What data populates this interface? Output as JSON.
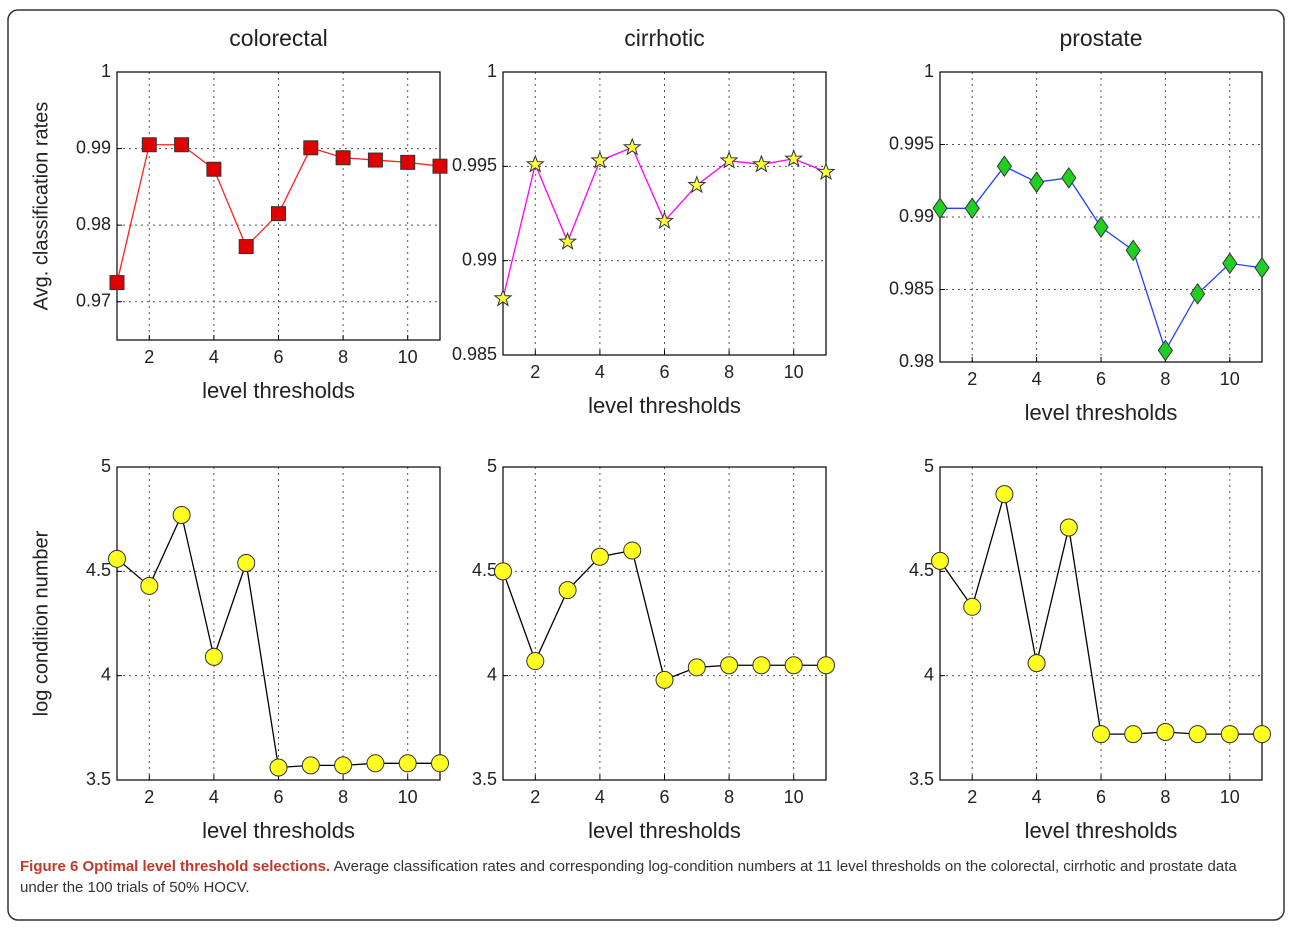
{
  "chart_data": [
    {
      "type": "line",
      "title": "colorectal",
      "xlabel": "level thresholds",
      "ylabel": "Avg. classification rates",
      "x": [
        1,
        2,
        3,
        4,
        5,
        6,
        7,
        8,
        9,
        10,
        11
      ],
      "xlim": [
        1,
        11
      ],
      "xticks": [
        2,
        4,
        6,
        8,
        10
      ],
      "ylim": [
        0.965,
        1
      ],
      "yticks": [
        0.97,
        0.98,
        0.99,
        1
      ],
      "grid": true,
      "series": [
        {
          "color": "#ff2020",
          "marker": "square",
          "marker_color": "#e00000",
          "values": [
            0.9725,
            0.9905,
            0.9905,
            0.9873,
            0.9772,
            0.9815,
            0.9901,
            0.9888,
            0.9885,
            0.9882,
            0.9877
          ]
        }
      ]
    },
    {
      "type": "line",
      "title": "cirrhotic",
      "xlabel": "level thresholds",
      "x": [
        1,
        2,
        3,
        4,
        5,
        6,
        7,
        8,
        9,
        10,
        11
      ],
      "xlim": [
        1,
        11
      ],
      "xticks": [
        2,
        4,
        6,
        8,
        10
      ],
      "ylim": [
        0.985,
        1
      ],
      "yticks": [
        0.985,
        0.99,
        0.995,
        1
      ],
      "grid": true,
      "series": [
        {
          "color": "#ff00ff",
          "marker": "star",
          "marker_color": "#ffff40",
          "values": [
            0.988,
            0.9951,
            0.991,
            0.9953,
            0.996,
            0.9921,
            0.994,
            0.9953,
            0.9951,
            0.9954,
            0.9947
          ]
        }
      ]
    },
    {
      "type": "line",
      "title": "prostate",
      "xlabel": "level thresholds",
      "x": [
        1,
        2,
        3,
        4,
        5,
        6,
        7,
        8,
        9,
        10,
        11
      ],
      "xlim": [
        1,
        11
      ],
      "xticks": [
        2,
        4,
        6,
        8,
        10
      ],
      "ylim": [
        0.98,
        1
      ],
      "yticks": [
        0.98,
        0.985,
        0.99,
        0.995,
        1
      ],
      "grid": true,
      "series": [
        {
          "color": "#2040ff",
          "marker": "diamond",
          "marker_color": "#20d020",
          "values": [
            0.9906,
            0.9906,
            0.9935,
            0.9924,
            0.9927,
            0.9893,
            0.9877,
            0.9808,
            0.9847,
            0.9868,
            0.9865
          ]
        }
      ]
    },
    {
      "type": "line",
      "xlabel": "level thresholds",
      "ylabel": "log condition number",
      "x": [
        1,
        2,
        3,
        4,
        5,
        6,
        7,
        8,
        9,
        10,
        11
      ],
      "xlim": [
        1,
        11
      ],
      "xticks": [
        2,
        4,
        6,
        8,
        10
      ],
      "ylim": [
        3.5,
        5
      ],
      "yticks": [
        3.5,
        4,
        4.5,
        5
      ],
      "grid": true,
      "series": [
        {
          "color": "#000000",
          "marker": "circle",
          "marker_color": "#ffff20",
          "values": [
            4.56,
            4.43,
            4.77,
            4.09,
            4.54,
            3.56,
            3.57,
            3.57,
            3.58,
            3.58,
            3.58
          ]
        }
      ]
    },
    {
      "type": "line",
      "xlabel": "level thresholds",
      "x": [
        1,
        2,
        3,
        4,
        5,
        6,
        7,
        8,
        9,
        10,
        11
      ],
      "xlim": [
        1,
        11
      ],
      "xticks": [
        2,
        4,
        6,
        8,
        10
      ],
      "ylim": [
        3.5,
        5
      ],
      "yticks": [
        3.5,
        4,
        4.5,
        5
      ],
      "grid": true,
      "series": [
        {
          "color": "#000000",
          "marker": "circle",
          "marker_color": "#ffff20",
          "values": [
            4.5,
            4.07,
            4.41,
            4.57,
            4.6,
            3.98,
            4.04,
            4.05,
            4.05,
            4.05,
            4.05
          ]
        }
      ]
    },
    {
      "type": "line",
      "xlabel": "level thresholds",
      "x": [
        1,
        2,
        3,
        4,
        5,
        6,
        7,
        8,
        9,
        10,
        11
      ],
      "xlim": [
        1,
        11
      ],
      "xticks": [
        2,
        4,
        6,
        8,
        10
      ],
      "ylim": [
        3.5,
        5
      ],
      "yticks": [
        3.5,
        4,
        4.5,
        5
      ],
      "grid": true,
      "series": [
        {
          "color": "#000000",
          "marker": "circle",
          "marker_color": "#ffff20",
          "values": [
            4.55,
            4.33,
            4.87,
            4.06,
            4.71,
            3.72,
            3.72,
            3.73,
            3.72,
            3.72,
            3.72
          ]
        }
      ]
    }
  ],
  "caption": {
    "label": "Figure 6 Optimal level threshold selections.",
    "text": "Average classification rates and corresponding log-condition numbers at 11 level thresholds on the colorectal, cirrhotic and prostate data under the 100 trials of 50% HOCV."
  }
}
